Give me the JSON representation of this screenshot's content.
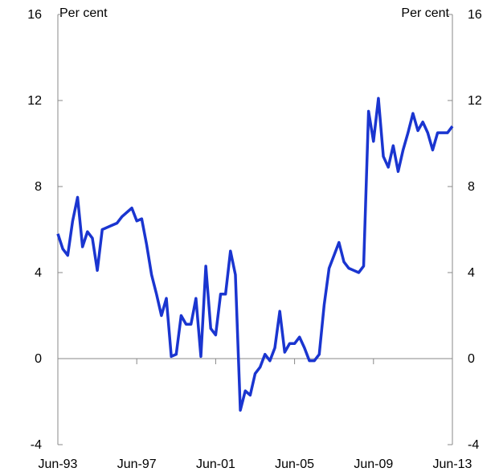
{
  "chart_data": {
    "type": "line",
    "y_label": "Per cent",
    "y2_label": "Per cent",
    "categories": [
      "Jun-93",
      null,
      null,
      null,
      null,
      null,
      null,
      null,
      null,
      null,
      null,
      null,
      null,
      null,
      null,
      null,
      "Jun-97",
      null,
      null,
      null,
      null,
      null,
      null,
      null,
      null,
      null,
      null,
      null,
      null,
      null,
      null,
      null,
      "Jun-01",
      null,
      null,
      null,
      null,
      null,
      null,
      null,
      null,
      null,
      null,
      null,
      null,
      null,
      null,
      null,
      "Jun-05",
      null,
      null,
      null,
      null,
      null,
      null,
      null,
      null,
      null,
      null,
      null,
      null,
      null,
      null,
      null,
      "Jun-09",
      null,
      null,
      null,
      null,
      null,
      null,
      null,
      null,
      null,
      null,
      null,
      null,
      null,
      null,
      null,
      "Jun-13"
    ],
    "values": [
      5.8,
      5.1,
      4.8,
      6.4,
      7.5,
      5.2,
      5.9,
      5.6,
      4.1,
      6.0,
      6.1,
      6.2,
      6.3,
      6.6,
      6.8,
      7.0,
      6.4,
      6.5,
      5.3,
      3.9,
      3.0,
      2.0,
      2.8,
      0.1,
      0.2,
      2.0,
      1.6,
      1.6,
      2.8,
      0.1,
      4.3,
      1.4,
      1.1,
      3.0,
      3.0,
      5.0,
      3.9,
      -2.4,
      -1.5,
      -1.7,
      -0.7,
      -0.4,
      0.2,
      -0.1,
      0.5,
      2.2,
      0.3,
      0.7,
      0.7,
      1.0,
      0.5,
      -0.1,
      -0.1,
      0.2,
      2.5,
      4.2,
      4.8,
      5.4,
      4.5,
      4.2,
      4.1,
      4.0,
      4.3,
      11.5,
      10.1,
      12.1,
      9.4,
      8.9,
      9.9,
      8.7,
      9.7,
      10.5,
      11.4,
      10.6,
      11.0,
      10.5,
      9.7,
      10.5,
      10.5,
      10.5,
      10.8
    ],
    "color": "#1a35d0",
    "ylim": [
      -4,
      16
    ],
    "yticks": [
      -4,
      0,
      4,
      8,
      12,
      16
    ],
    "y2lim": [
      -4,
      16
    ],
    "y2ticks": [
      -4,
      0,
      4,
      8,
      12,
      16
    ]
  }
}
